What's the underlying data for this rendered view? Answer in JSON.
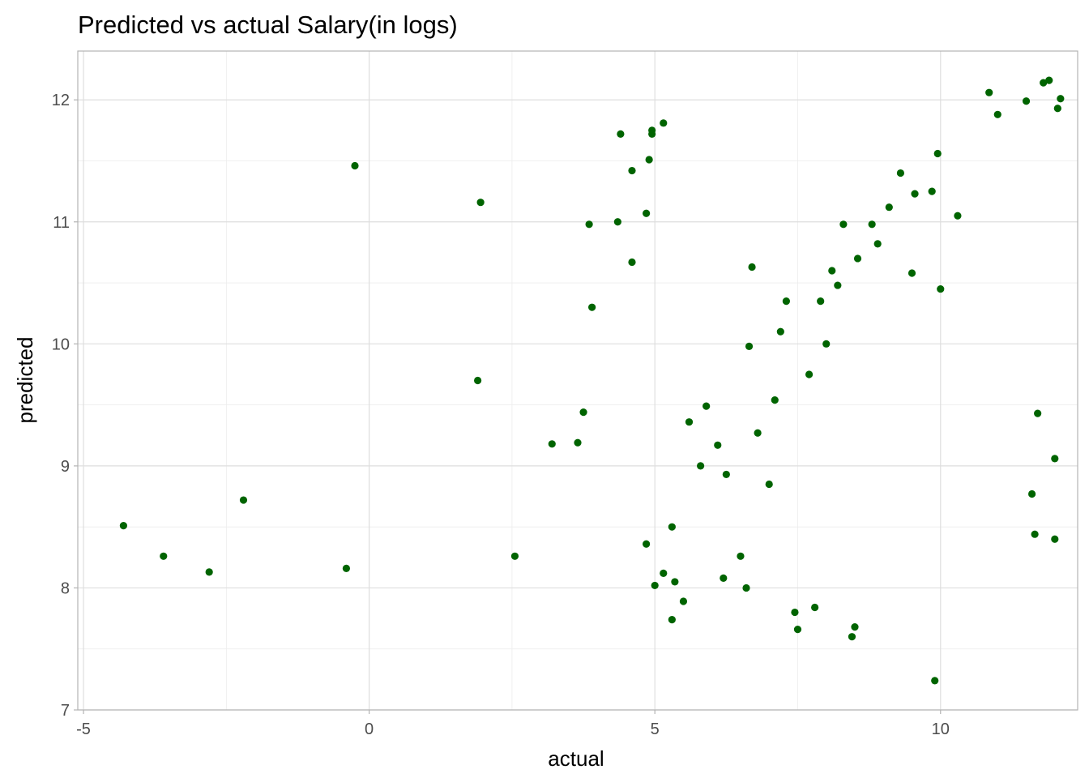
{
  "chart_data": {
    "type": "scatter",
    "title": "Predicted vs actual Salary(in logs)",
    "xlabel": "actual",
    "ylabel": "predicted",
    "xlim": [
      -5.1,
      12.4
    ],
    "ylim": [
      7.0,
      12.4
    ],
    "xticks": [
      -5,
      0,
      5,
      10
    ],
    "yticks": [
      7,
      8,
      9,
      10,
      11,
      12
    ],
    "xtick_labels": [
      "-5",
      "0",
      "5",
      "10"
    ],
    "ytick_labels": [
      "7",
      "8",
      "9",
      "10",
      "11",
      "12"
    ],
    "grid": true,
    "marker_color": "#006400",
    "series": [
      {
        "points": [
          [
            -4.3,
            8.51
          ],
          [
            -3.6,
            8.26
          ],
          [
            -2.8,
            8.13
          ],
          [
            -2.2,
            8.72
          ],
          [
            -0.4,
            8.16
          ],
          [
            -0.25,
            11.46
          ],
          [
            1.9,
            9.7
          ],
          [
            1.95,
            11.16
          ],
          [
            2.55,
            8.26
          ],
          [
            3.2,
            9.18
          ],
          [
            3.65,
            9.19
          ],
          [
            3.75,
            9.44
          ],
          [
            3.85,
            10.98
          ],
          [
            3.9,
            10.3
          ],
          [
            4.35,
            11.0
          ],
          [
            4.4,
            11.72
          ],
          [
            4.6,
            10.67
          ],
          [
            4.6,
            11.42
          ],
          [
            4.85,
            11.07
          ],
          [
            4.9,
            11.51
          ],
          [
            4.95,
            11.75
          ],
          [
            4.95,
            11.72
          ],
          [
            5.15,
            11.81
          ],
          [
            5.0,
            8.02
          ],
          [
            5.15,
            8.12
          ],
          [
            5.3,
            7.74
          ],
          [
            5.35,
            8.05
          ],
          [
            5.5,
            7.89
          ],
          [
            5.3,
            8.5
          ],
          [
            4.85,
            8.36
          ],
          [
            5.6,
            9.36
          ],
          [
            5.8,
            9.0
          ],
          [
            5.9,
            9.49
          ],
          [
            6.1,
            9.17
          ],
          [
            6.2,
            8.08
          ],
          [
            6.25,
            8.93
          ],
          [
            6.5,
            8.26
          ],
          [
            6.6,
            8.0
          ],
          [
            6.65,
            9.98
          ],
          [
            6.7,
            10.63
          ],
          [
            6.8,
            9.27
          ],
          [
            7.0,
            8.85
          ],
          [
            7.1,
            9.54
          ],
          [
            7.2,
            10.1
          ],
          [
            7.3,
            10.35
          ],
          [
            7.45,
            7.8
          ],
          [
            7.5,
            7.66
          ],
          [
            7.7,
            9.75
          ],
          [
            7.8,
            7.84
          ],
          [
            7.9,
            10.35
          ],
          [
            8.0,
            10.0
          ],
          [
            8.1,
            10.6
          ],
          [
            8.2,
            10.48
          ],
          [
            8.3,
            10.98
          ],
          [
            8.45,
            7.6
          ],
          [
            8.5,
            7.68
          ],
          [
            8.55,
            10.7
          ],
          [
            8.8,
            10.98
          ],
          [
            8.9,
            10.82
          ],
          [
            9.1,
            11.12
          ],
          [
            9.3,
            11.4
          ],
          [
            9.5,
            10.58
          ],
          [
            9.55,
            11.23
          ],
          [
            9.85,
            11.25
          ],
          [
            9.9,
            7.24
          ],
          [
            9.95,
            11.56
          ],
          [
            10.0,
            10.45
          ],
          [
            10.3,
            11.05
          ],
          [
            10.85,
            12.06
          ],
          [
            11.0,
            11.88
          ],
          [
            11.6,
            8.77
          ],
          [
            11.65,
            8.44
          ],
          [
            11.7,
            9.43
          ],
          [
            12.0,
            8.4
          ],
          [
            12.0,
            9.06
          ],
          [
            11.8,
            12.14
          ],
          [
            11.9,
            12.16
          ],
          [
            12.05,
            11.93
          ],
          [
            12.1,
            12.01
          ],
          [
            11.5,
            11.99
          ]
        ]
      }
    ]
  }
}
